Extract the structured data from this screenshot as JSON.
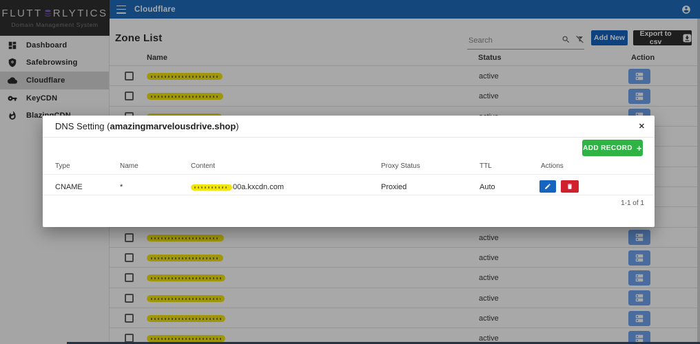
{
  "brand": {
    "name_left": "FLUTT",
    "name_right": "RLYTICS",
    "subtitle": "Domain Management System"
  },
  "topbar": {
    "title": "Cloudflare"
  },
  "sidebar": {
    "items": [
      {
        "label": "Dashboard",
        "icon": "dashboard-icon",
        "active": false
      },
      {
        "label": "Safebrowsing",
        "icon": "shield-icon",
        "active": false
      },
      {
        "label": "Cloudflare",
        "icon": "cloud-icon",
        "active": true
      },
      {
        "label": "KeyCDN",
        "icon": "key-icon",
        "active": false
      },
      {
        "label": "BlazingCDN",
        "icon": "flame-icon",
        "active": false
      }
    ]
  },
  "main": {
    "title": "Zone List",
    "search": {
      "placeholder": "Search"
    },
    "buttons": {
      "add_new": "Add New",
      "export_csv": "Export to csv"
    },
    "table": {
      "headers": {
        "name": "Name",
        "status": "Status",
        "action": "Action"
      },
      "note": "zone names are redacted with yellow highlighter in the source image",
      "rows": [
        {
          "status": "active",
          "redacted_width": 110
        },
        {
          "status": "active",
          "redacted_width": 111
        },
        {
          "status": "active",
          "redacted_width": 109
        },
        {
          "status": "active",
          "redacted_width": 110
        },
        {
          "status": "active",
          "redacted_width": 110
        },
        {
          "status": "active",
          "redacted_width": 110
        },
        {
          "status": "active",
          "redacted_width": 110
        },
        {
          "status": "active",
          "redacted_width": 110
        },
        {
          "status": "active",
          "redacted_width": 112
        },
        {
          "status": "active",
          "redacted_width": 111
        },
        {
          "status": "active",
          "redacted_width": 114
        },
        {
          "status": "active",
          "redacted_width": 113
        },
        {
          "status": "active",
          "redacted_width": 114
        },
        {
          "status": "active",
          "redacted_width": 114
        }
      ]
    }
  },
  "modal": {
    "title_prefix": "DNS Setting (",
    "domain": "amazingmarvelousdrive.shop",
    "title_suffix": ")",
    "close_glyph": "✕",
    "add_record_label": "ADD RECORD",
    "plus_glyph": "+",
    "table": {
      "headers": [
        "Type",
        "Name",
        "Content",
        "Proxy Status",
        "TTL",
        "Actions"
      ],
      "row": {
        "type": "CNAME",
        "name": "*",
        "content_visible": "00a.kxcdn.com",
        "proxy_status": "Proxied",
        "ttl": "Auto"
      }
    },
    "pagination": "1-1 of 1"
  },
  "colors": {
    "topbar": "#1f6cbd",
    "primary": "#1565c0",
    "row_action_blue": "#6fa3ef",
    "green": "#2fb344",
    "red": "#d0202e",
    "highlight_yellow": "#f2e50e",
    "export_dark": "#2e2e2e",
    "overlay": "rgba(0,0,0,0.34)",
    "logo_icon_purple": "#7e5fc9"
  }
}
